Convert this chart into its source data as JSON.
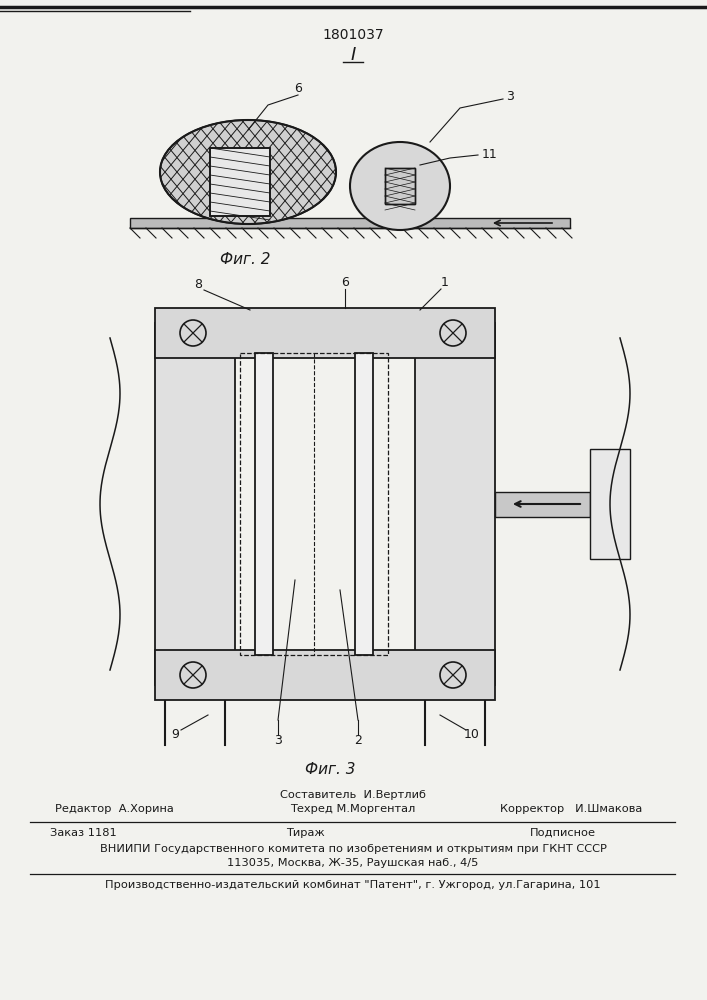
{
  "patent_number": "1801037",
  "fig2_label": "Фиг. 2",
  "fig3_label": "Фиг. 3",
  "editor_line": "Редактор  А.Хорина",
  "sostavitel_line": "Составитель  И.Вертлиб",
  "tekhred_line": "Техред М.Моргентал",
  "korrektor_line": "Корректор   И.Шмакова",
  "zakaz_line": "Заказ 1181",
  "tirazh_line": "Тираж",
  "podpisnoe_line": "Подписное",
  "vniipи_line": "ВНИИПИ Государственного комитета по изобретениям и открытиям при ГКНТ СССР",
  "address_line": "113035, Москва, Ж-35, Раушская наб., 4/5",
  "kombinat_line": "Производственно-издательский комбинат \"Патент\", г. Ужгород, ул.Гагарина, 101",
  "bg_color": "#f2f2ee",
  "line_color": "#1a1a1a",
  "text_color": "#1a1a1a"
}
